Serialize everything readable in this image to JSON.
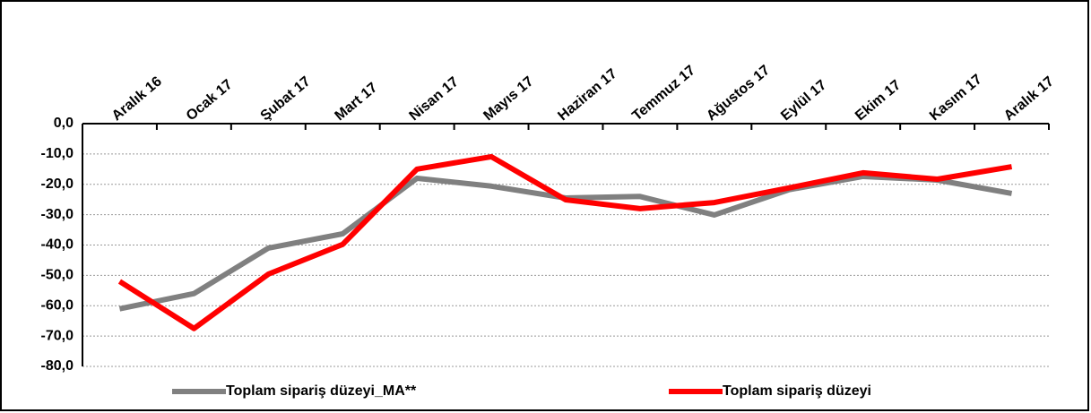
{
  "chart_data": {
    "type": "line",
    "categories": [
      "Aralık 16",
      "Ocak 17",
      "Şubat 17",
      "Mart 17",
      "Nisan 17",
      "Mayıs 17",
      "Haziran 17",
      "Temmuz 17",
      "Ağustos 17",
      "Eylül 17",
      "Ekim 17",
      "Kasım 17",
      "Aralık 17"
    ],
    "series": [
      {
        "name": "Toplam sipariş düzeyi_MA**",
        "color": "#808080",
        "values": [
          -61.0,
          -56.0,
          -41.0,
          -36.3,
          -18.0,
          -20.6,
          -24.5,
          -24.0,
          -30.1,
          -21.8,
          -17.4,
          -18.6,
          -23.0
        ]
      },
      {
        "name": "Toplam sipariş düzeyi",
        "color": "#ff0000",
        "values": [
          -52.0,
          -67.5,
          -49.6,
          -39.8,
          -15.0,
          -10.9,
          -25.1,
          -28.0,
          -26.0,
          -21.2,
          -16.2,
          -18.3,
          -14.2
        ]
      }
    ],
    "ylim": [
      -80,
      0
    ],
    "yticks": [
      {
        "value": 0,
        "label": "0,0"
      },
      {
        "value": -10,
        "label": "-10,0"
      },
      {
        "value": -20,
        "label": "-20,0"
      },
      {
        "value": -30,
        "label": "-30,0"
      },
      {
        "value": -40,
        "label": "-40,0"
      },
      {
        "value": -50,
        "label": "-50,0"
      },
      {
        "value": -60,
        "label": "-60,0"
      },
      {
        "value": -70,
        "label": "-70,0"
      },
      {
        "value": -80,
        "label": "-80,0"
      }
    ],
    "grid": true,
    "legend": "bottom"
  }
}
